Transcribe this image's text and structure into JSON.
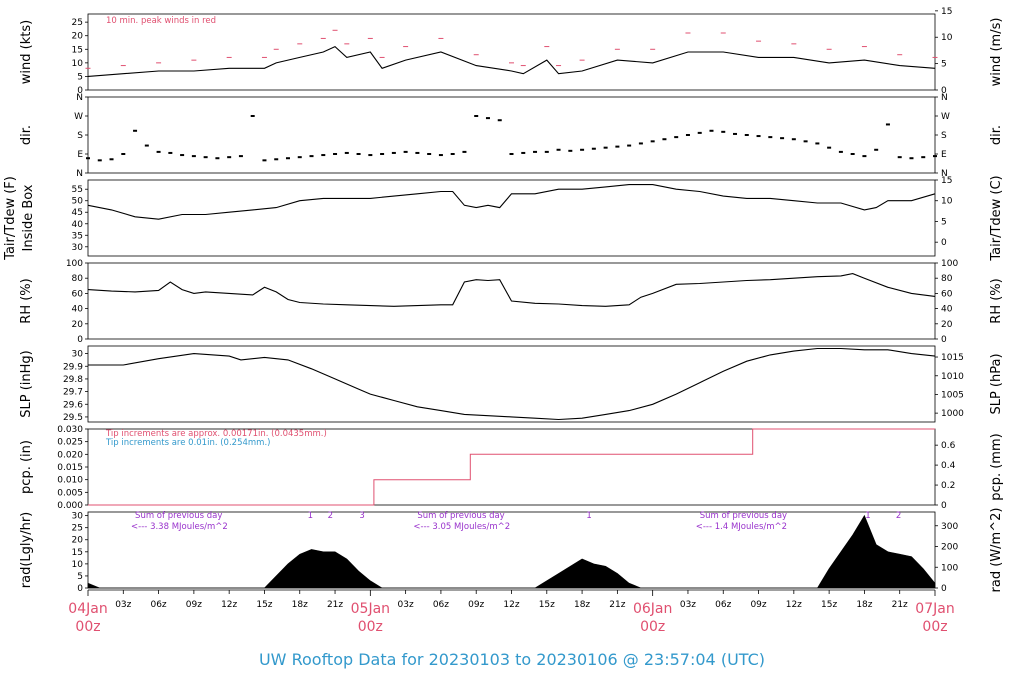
{
  "footer_title": "UW Rooftop Data for 20230103  to  20230106 @ 23:57:04  (UTC)",
  "colors": {
    "peak": "#e05070",
    "note_blue": "#3399cc",
    "rad_note": "#9933cc",
    "day_label": "#e05070",
    "footer": "#3399cc",
    "line": "#000000"
  },
  "x_axis": {
    "range_hours": [
      0,
      72
    ],
    "hour_ticks": [
      {
        "h": 3,
        "label": "03z"
      },
      {
        "h": 6,
        "label": "06z"
      },
      {
        "h": 9,
        "label": "09z"
      },
      {
        "h": 12,
        "label": "12z"
      },
      {
        "h": 15,
        "label": "15z"
      },
      {
        "h": 18,
        "label": "18z"
      },
      {
        "h": 21,
        "label": "21z"
      },
      {
        "h": 27,
        "label": "03z"
      },
      {
        "h": 30,
        "label": "06z"
      },
      {
        "h": 33,
        "label": "09z"
      },
      {
        "h": 36,
        "label": "12z"
      },
      {
        "h": 39,
        "label": "15z"
      },
      {
        "h": 42,
        "label": "18z"
      },
      {
        "h": 45,
        "label": "21z"
      },
      {
        "h": 51,
        "label": "03z"
      },
      {
        "h": 54,
        "label": "06z"
      },
      {
        "h": 57,
        "label": "09z"
      },
      {
        "h": 60,
        "label": "12z"
      },
      {
        "h": 63,
        "label": "15z"
      },
      {
        "h": 66,
        "label": "18z"
      },
      {
        "h": 69,
        "label": "21z"
      }
    ],
    "day_labels": [
      {
        "h": 0,
        "day": "04Jan",
        "time": "00z"
      },
      {
        "h": 24,
        "day": "05Jan",
        "time": "00z"
      },
      {
        "h": 48,
        "day": "06Jan",
        "time": "00z"
      },
      {
        "h": 72,
        "day": "07Jan",
        "time": "00z"
      }
    ]
  },
  "chart_data": [
    {
      "type": "line",
      "panel": "wind",
      "ylabel_left": "wind (kts)",
      "ylabel_right": "wind (m/s)",
      "ylim": [
        0,
        28
      ],
      "yticks_left": [
        0,
        5,
        10,
        15,
        20,
        25
      ],
      "yticks_right": [
        {
          "v": 0,
          "pos": 0
        },
        {
          "v": 5,
          "pos": 9.72
        },
        {
          "v": 10,
          "pos": 19.44
        },
        {
          "v": 15,
          "pos": 29.16
        }
      ],
      "annotation": "10 min. peak winds in red",
      "series": [
        {
          "hours": [
            0,
            3,
            6,
            9,
            12,
            15,
            16,
            18,
            20,
            21,
            22,
            24,
            25,
            27,
            30,
            33,
            36,
            37,
            39,
            40,
            42,
            45,
            48,
            51,
            54,
            57,
            60,
            63,
            66,
            69,
            72
          ],
          "values": [
            5,
            6,
            7,
            7,
            8,
            8,
            10,
            12,
            14,
            16,
            12,
            14,
            8,
            11,
            14,
            9,
            7,
            6,
            11,
            6,
            7,
            11,
            10,
            14,
            14,
            12,
            12,
            10,
            11,
            9,
            8
          ]
        }
      ],
      "peak_series": {
        "hours": [
          0,
          3,
          6,
          9,
          12,
          15,
          16,
          18,
          20,
          21,
          22,
          24,
          25,
          27,
          30,
          33,
          36,
          37,
          39,
          40,
          42,
          45,
          48,
          51,
          54,
          57,
          60,
          63,
          66,
          69,
          72
        ],
        "values": [
          8,
          9,
          10,
          11,
          12,
          12,
          15,
          17,
          19,
          22,
          17,
          19,
          12,
          16,
          19,
          13,
          10,
          9,
          16,
          9,
          11,
          15,
          15,
          21,
          21,
          18,
          17,
          15,
          16,
          13,
          12
        ]
      }
    },
    {
      "type": "scatter",
      "panel": "dir",
      "ylabel_left": "dir.",
      "ylabel_right": "dir.",
      "ylim": [
        0,
        360
      ],
      "yticks": [
        {
          "v": 0,
          "label": "N"
        },
        {
          "v": 90,
          "label": "E"
        },
        {
          "v": 180,
          "label": "S"
        },
        {
          "v": 270,
          "label": "W"
        },
        {
          "v": 360,
          "label": "N"
        }
      ],
      "series": [
        {
          "hours": [
            0,
            1,
            2,
            3,
            4,
            5,
            6,
            7,
            8,
            9,
            10,
            11,
            12,
            13,
            14,
            15,
            16,
            17,
            18,
            19,
            20,
            21,
            22,
            23,
            24,
            25,
            26,
            27,
            28,
            29,
            30,
            31,
            32,
            33,
            34,
            35,
            36,
            37,
            38,
            39,
            40,
            41,
            42,
            43,
            44,
            45,
            46,
            47,
            48,
            49,
            50,
            51,
            52,
            53,
            54,
            55,
            56,
            57,
            58,
            59,
            60,
            61,
            62,
            63,
            64,
            65,
            66,
            67,
            68,
            69,
            70,
            71,
            72
          ],
          "values": [
            70,
            60,
            65,
            90,
            200,
            130,
            100,
            95,
            85,
            80,
            75,
            70,
            75,
            80,
            270,
            60,
            65,
            70,
            75,
            80,
            85,
            90,
            95,
            90,
            85,
            90,
            95,
            100,
            95,
            90,
            85,
            90,
            100,
            270,
            260,
            250,
            90,
            95,
            100,
            100,
            110,
            105,
            110,
            115,
            120,
            125,
            130,
            140,
            150,
            160,
            170,
            180,
            190,
            200,
            195,
            185,
            180,
            175,
            170,
            165,
            160,
            150,
            140,
            120,
            100,
            90,
            80,
            110,
            230,
            75,
            70,
            75,
            80
          ]
        }
      ]
    },
    {
      "type": "line",
      "panel": "temp",
      "ylabel_left": [
        "Tair/Tdew (F)",
        "Inside Box"
      ],
      "ylabel_right": "Tair/Tdew (C)",
      "ylim": [
        26,
        59
      ],
      "yticks_left": [
        30,
        35,
        40,
        45,
        50,
        55
      ],
      "yticks_right": [
        {
          "v": 0,
          "pos": 32
        },
        {
          "v": 5,
          "pos": 41
        },
        {
          "v": 10,
          "pos": 50
        },
        {
          "v": 15,
          "pos": 59
        }
      ],
      "series": [
        {
          "hours": [
            0,
            2,
            4,
            6,
            8,
            10,
            12,
            14,
            16,
            18,
            20,
            22,
            24,
            26,
            28,
            30,
            31,
            32,
            33,
            34,
            35,
            36,
            38,
            40,
            42,
            44,
            46,
            48,
            50,
            52,
            54,
            56,
            58,
            60,
            62,
            64,
            66,
            67,
            68,
            70,
            72
          ],
          "values": [
            48,
            46,
            43,
            42,
            44,
            44,
            45,
            46,
            47,
            50,
            51,
            51,
            51,
            52,
            53,
            54,
            54,
            48,
            47,
            48,
            47,
            53,
            53,
            55,
            55,
            56,
            57,
            57,
            55,
            54,
            52,
            51,
            51,
            50,
            49,
            49,
            46,
            47,
            50,
            50,
            53
          ]
        }
      ]
    },
    {
      "type": "line",
      "panel": "rh",
      "ylabel_left": "RH (%)",
      "ylabel_right": "RH (%)",
      "ylim": [
        0,
        100
      ],
      "yticks": [
        0,
        20,
        40,
        60,
        80,
        100
      ],
      "series": [
        {
          "hours": [
            0,
            2,
            4,
            6,
            7,
            8,
            9,
            10,
            12,
            14,
            15,
            16,
            17,
            18,
            20,
            22,
            24,
            26,
            28,
            30,
            31,
            32,
            33,
            34,
            35,
            36,
            38,
            40,
            42,
            44,
            46,
            47,
            48,
            50,
            52,
            54,
            56,
            58,
            60,
            62,
            64,
            65,
            66,
            68,
            70,
            72
          ],
          "values": [
            65,
            63,
            62,
            64,
            75,
            65,
            60,
            62,
            60,
            58,
            68,
            62,
            52,
            48,
            46,
            45,
            44,
            43,
            44,
            45,
            45,
            75,
            78,
            77,
            78,
            50,
            47,
            46,
            44,
            43,
            45,
            55,
            60,
            72,
            73,
            75,
            77,
            78,
            80,
            82,
            83,
            86,
            80,
            68,
            60,
            56
          ]
        }
      ]
    },
    {
      "type": "line",
      "panel": "slp",
      "ylabel_left": "SLP (inHg)",
      "ylabel_right": "SLP (hPa)",
      "ylim": [
        29.46,
        30.06
      ],
      "yticks_left": [
        29.5,
        29.6,
        29.7,
        29.8,
        29.9,
        30.0
      ],
      "yticks_right": [
        {
          "v": 1000,
          "pos": 29.53
        },
        {
          "v": 1005,
          "pos": 29.678
        },
        {
          "v": 1010,
          "pos": 29.825
        },
        {
          "v": 1015,
          "pos": 29.973
        }
      ],
      "series": [
        {
          "hours": [
            0,
            3,
            6,
            9,
            12,
            13,
            15,
            17,
            19,
            21,
            23,
            24,
            26,
            28,
            30,
            32,
            34,
            36,
            38,
            40,
            42,
            44,
            46,
            48,
            50,
            52,
            54,
            56,
            58,
            60,
            62,
            64,
            66,
            68,
            70,
            72
          ],
          "values": [
            29.91,
            29.91,
            29.96,
            30.0,
            29.98,
            29.95,
            29.97,
            29.95,
            29.88,
            29.8,
            29.72,
            29.68,
            29.63,
            29.58,
            29.55,
            29.52,
            29.51,
            29.5,
            29.49,
            29.48,
            29.49,
            29.52,
            29.55,
            29.6,
            29.68,
            29.77,
            29.86,
            29.94,
            29.99,
            30.02,
            30.04,
            30.04,
            30.03,
            30.03,
            30.0,
            29.98
          ]
        }
      ]
    },
    {
      "type": "line",
      "panel": "pcp",
      "ylabel_left": "pcp. (in)",
      "ylabel_right": "pcp. (mm)",
      "ylim": [
        0,
        0.03
      ],
      "yticks_left": [
        "0.000",
        "0.005",
        "0.010",
        "0.015",
        "0.020",
        "0.025",
        "0.030"
      ],
      "yticks_right": [
        {
          "v": "0",
          "pos": 0
        },
        {
          "v": "0.2",
          "pos": 0.00787
        },
        {
          "v": "0.4",
          "pos": 0.01575
        },
        {
          "v": "0.6",
          "pos": 0.02362
        }
      ],
      "notes": [
        "Tip increments are approx. 0.00171in. (0.0435mm.)",
        "Tip increments are 0.01in. (0.254mm.)"
      ],
      "series": [
        {
          "hours": [
            0,
            24.3,
            24.3,
            32.5,
            32.5,
            56.5,
            56.5,
            72
          ],
          "values": [
            0,
            0,
            0.01,
            0.01,
            0.02,
            0.02,
            0.03,
            0.03
          ]
        }
      ]
    },
    {
      "type": "area",
      "panel": "rad",
      "ylabel_left": "rad(Lgly/hr)",
      "ylabel_right": "rad (W/m^2)",
      "ylim": [
        0,
        31.5
      ],
      "yticks_left": [
        0,
        5,
        10,
        15,
        20,
        25,
        30
      ],
      "yticks_right": [
        {
          "v": 0,
          "pos": 0
        },
        {
          "v": 100,
          "pos": 8.6
        },
        {
          "v": 200,
          "pos": 17.2
        },
        {
          "v": 300,
          "pos": 25.8
        }
      ],
      "day_notes": [
        {
          "h": 4,
          "line1": "Sum of previous day",
          "line2": "<--- 3.38 MJoules/m^2"
        },
        {
          "h": 28,
          "line1": "Sum of previous day",
          "line2": "<--- 3.05 MJoules/m^2"
        },
        {
          "h": 52,
          "line1": "Sum of previous day",
          "line2": "<--- 1.4 MJoules/m^2"
        }
      ],
      "markers": [
        {
          "h": 18.9,
          "label": "1"
        },
        {
          "h": 20.6,
          "label": "2"
        },
        {
          "h": 23.3,
          "label": "3"
        },
        {
          "h": 42.6,
          "label": "1"
        },
        {
          "h": 66.3,
          "label": "1"
        },
        {
          "h": 68.9,
          "label": "2"
        }
      ],
      "series": [
        {
          "hours": [
            0,
            0.5,
            1,
            15,
            16,
            17,
            18,
            19,
            20,
            21,
            22,
            23,
            24,
            25,
            38,
            39,
            40,
            41,
            42,
            43,
            44,
            45,
            46,
            47,
            62,
            63,
            64,
            65,
            66,
            67,
            68,
            69,
            70,
            71,
            72
          ],
          "values": [
            2,
            1,
            0,
            0,
            5,
            10,
            14,
            16,
            15,
            15,
            12,
            7,
            3,
            0,
            0,
            3,
            6,
            9,
            12,
            10,
            9,
            6,
            2,
            0,
            0,
            8,
            15,
            22,
            30,
            18,
            15,
            14,
            13,
            8,
            2
          ]
        }
      ]
    }
  ]
}
